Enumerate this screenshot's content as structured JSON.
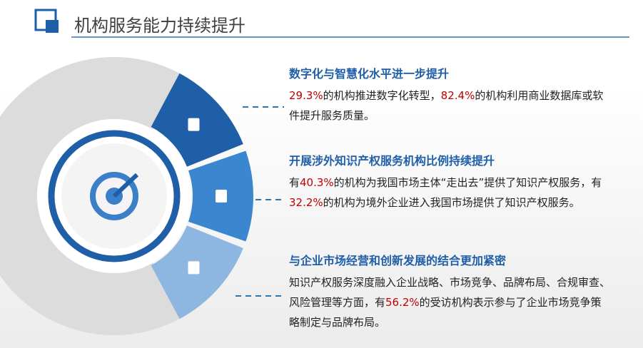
{
  "header": {
    "title": "机构服务能力持续提升"
  },
  "sections": [
    {
      "heading": "数字化与智慧化水平进一步提升",
      "body": [
        {
          "text": "29.3%",
          "color": "#c00000"
        },
        {
          "text": "的机构推进数字化转型，"
        },
        {
          "text": "82.4%",
          "color": "#c00000"
        },
        {
          "text": "的机构利用商业数据库或软件提升服务质量。"
        }
      ]
    },
    {
      "heading": "开展涉外知识产权服务机构比例持续提升",
      "body": [
        {
          "text": "有"
        },
        {
          "text": "40.3%",
          "color": "#c00000"
        },
        {
          "text": "的机构为我国市场主体“走出去”提供了知识产权服务，有"
        },
        {
          "text": "32.2%",
          "color": "#c00000"
        },
        {
          "text": "的机构为境外企业进入我国市场提供了知识产权服务。"
        }
      ]
    },
    {
      "heading": "与企业市场经营和创新发展的结合更加紧密",
      "body": [
        {
          "text": "知识产权服务深度融入企业战略、市场竞争、品牌布局、合规审查、风险管理等方面，有"
        },
        {
          "text": "56.2%",
          "color": "#c00000"
        },
        {
          "text": "的受访机构表示参与了企业市场竞争策略制定与品牌布局。"
        }
      ]
    }
  ]
}
